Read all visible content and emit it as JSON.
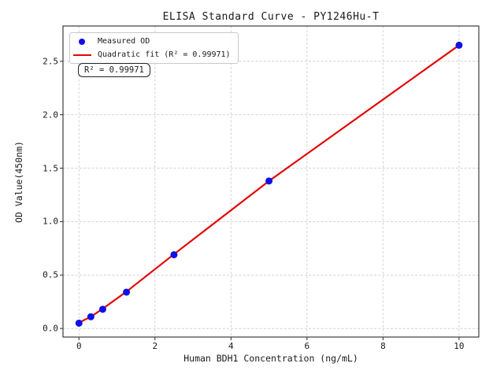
{
  "chart_data": {
    "type": "scatter",
    "title": "ELISA Standard Curve - PY1246Hu-T",
    "xlabel": "Human BDH1 Concentration (ng/mL)",
    "ylabel": "OD Value(450nm)",
    "xlim": [
      -0.42,
      10.52
    ],
    "ylim": [
      -0.08,
      2.83
    ],
    "x_ticks": [
      0,
      2,
      4,
      6,
      8,
      10
    ],
    "x_tick_labels": [
      "0",
      "2",
      "4",
      "6",
      "8",
      "10"
    ],
    "y_ticks": [
      0.0,
      0.5,
      1.0,
      1.5,
      2.0,
      2.5
    ],
    "y_tick_labels": [
      "0.0",
      "0.5",
      "1.0",
      "1.5",
      "2.0",
      "2.5"
    ],
    "grid": true,
    "legend_position": "upper-left",
    "r_squared": 0.99971,
    "series": [
      {
        "name": "Measured OD",
        "kind": "scatter",
        "color": "#0f0fe8",
        "x": [
          0,
          0.3125,
          0.625,
          1.25,
          2.5,
          5,
          10
        ],
        "y": [
          0.05,
          0.11,
          0.18,
          0.34,
          0.69,
          1.38,
          2.65
        ]
      },
      {
        "name": "Quadratic fit (R² = 0.99971)",
        "kind": "line",
        "color": "#e30505",
        "x": [
          0,
          0.3125,
          0.625,
          1.25,
          2.5,
          5,
          10
        ],
        "y": [
          0.055,
          0.11,
          0.185,
          0.345,
          0.695,
          1.38,
          2.65
        ]
      }
    ]
  },
  "legend": {
    "items": [
      {
        "label": "Measured OD",
        "marker": "dot",
        "color": "#0f0fe8"
      },
      {
        "label": "Quadratic fit (R² = 0.99971)",
        "marker": "line",
        "color": "#e30505"
      }
    ]
  },
  "annotation": {
    "text": "R² = 0.99971"
  },
  "colors": {
    "measured_points": "#0f0fe8",
    "fit_line": "#e30505",
    "grid": "#cdcdcd",
    "spines": "#2b2b2b",
    "background": "#ffffff"
  }
}
